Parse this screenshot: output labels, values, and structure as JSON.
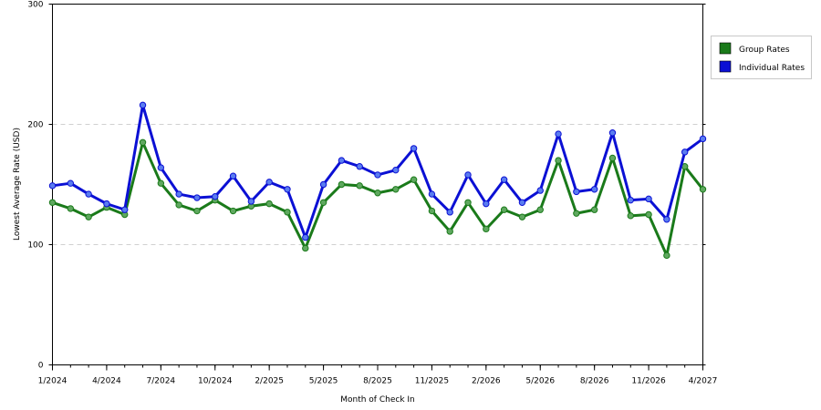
{
  "chart_data": {
    "type": "line",
    "xlabel": "Month of Check In",
    "ylabel": "Lowest Average Rate (USD)",
    "ylim": [
      0,
      300
    ],
    "yticks": [
      0,
      100,
      200,
      300
    ],
    "x_tick_labels": [
      "1/2024",
      "4/2024",
      "7/2024",
      "10/2024",
      "2/2025",
      "5/2025",
      "8/2025",
      "11/2025",
      "2/2026",
      "5/2026",
      "8/2026",
      "11/2026",
      "4/2027"
    ],
    "grid": "horizontal dashed",
    "legend_position": "top-right",
    "series": [
      {
        "name": "Group Rates",
        "color": "#1a7a1a",
        "values": [
          135,
          130,
          123,
          131,
          125,
          185,
          151,
          133,
          128,
          137,
          128,
          132,
          134,
          127,
          97,
          135,
          150,
          149,
          143,
          146,
          154,
          128,
          111,
          135,
          113,
          129,
          123,
          129,
          170,
          126,
          129,
          172,
          124,
          125,
          91,
          165,
          146
        ]
      },
      {
        "name": "Individual Rates",
        "color": "#0b10d4",
        "values": [
          149,
          151,
          142,
          134,
          129,
          216,
          164,
          142,
          139,
          140,
          157,
          136,
          152,
          146,
          106,
          150,
          170,
          165,
          158,
          162,
          180,
          142,
          127,
          158,
          134,
          154,
          135,
          145,
          192,
          144,
          146,
          193,
          137,
          138,
          121,
          177,
          188
        ]
      }
    ]
  }
}
